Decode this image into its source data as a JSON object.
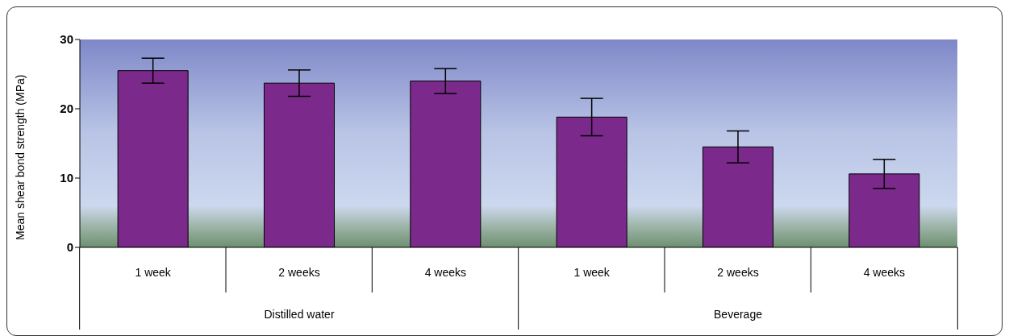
{
  "chart_data": {
    "type": "bar",
    "ylabel": "Mean shear bond strength (MPa)",
    "categories": [
      "1 week",
      "2 weeks",
      "4 weeks",
      "1 week",
      "2 weeks",
      "4 weeks"
    ],
    "values": [
      25.5,
      23.7,
      24.0,
      18.8,
      14.5,
      10.6
    ],
    "errors": [
      1.8,
      1.9,
      1.8,
      2.7,
      2.3,
      2.1
    ],
    "color": "#7b2a8c",
    "ylim": [
      0,
      30
    ],
    "yticks": [
      0,
      10,
      20,
      30
    ],
    "grid": false,
    "annotations": [
      "Distilled water",
      "Beverage"
    ]
  }
}
